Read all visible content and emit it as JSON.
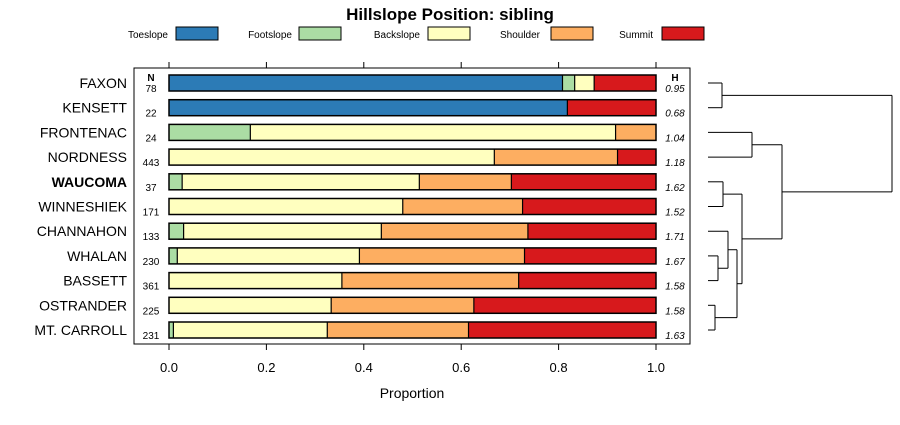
{
  "chart_data": {
    "type": "bar",
    "orientation": "horizontal-stacked",
    "title": "Hillslope Position: sibling",
    "xlabel": "Proportion",
    "ylabel": "",
    "xlim": [
      0,
      1
    ],
    "xticks": [
      "0.0",
      "0.2",
      "0.4",
      "0.6",
      "0.8",
      "1.0"
    ],
    "n_header": "N",
    "h_header": "H",
    "highlight": "WAUCOMA",
    "series": [
      {
        "name": "Toeslope",
        "color": "#2c7bb6"
      },
      {
        "name": "Footslope",
        "color": "#abdda4"
      },
      {
        "name": "Backslope",
        "color": "#ffffbf"
      },
      {
        "name": "Shoulder",
        "color": "#fdae61"
      },
      {
        "name": "Summit",
        "color": "#d7191c"
      }
    ],
    "rows": [
      {
        "label": "FAXON",
        "n": "78",
        "h": "0.95",
        "values": [
          0.808,
          0.025,
          0.04,
          0.0,
          0.127
        ]
      },
      {
        "label": "KENSETT",
        "n": "22",
        "h": "0.68",
        "values": [
          0.818,
          0.0,
          0.0,
          0.0,
          0.182
        ]
      },
      {
        "label": "FRONTENAC",
        "n": "24",
        "h": "1.04",
        "values": [
          0.0,
          0.167,
          0.75,
          0.083,
          0.0
        ]
      },
      {
        "label": "NORDNESS",
        "n": "443",
        "h": "1.18",
        "values": [
          0.0,
          0.0,
          0.668,
          0.253,
          0.079
        ]
      },
      {
        "label": "WAUCOMA",
        "n": "37",
        "h": "1.62",
        "values": [
          0.0,
          0.027,
          0.487,
          0.189,
          0.297
        ]
      },
      {
        "label": "WINNESHIEK",
        "n": "171",
        "h": "1.52",
        "values": [
          0.0,
          0.0,
          0.48,
          0.246,
          0.274
        ]
      },
      {
        "label": "CHANNAHON",
        "n": "133",
        "h": "1.71",
        "values": [
          0.0,
          0.03,
          0.406,
          0.301,
          0.263
        ]
      },
      {
        "label": "WHALAN",
        "n": "230",
        "h": "1.67",
        "values": [
          0.0,
          0.017,
          0.374,
          0.339,
          0.27
        ]
      },
      {
        "label": "BASSETT",
        "n": "361",
        "h": "1.58",
        "values": [
          0.0,
          0.0,
          0.355,
          0.363,
          0.282
        ]
      },
      {
        "label": "OSTRANDER",
        "n": "225",
        "h": "1.58",
        "values": [
          0.0,
          0.0,
          0.333,
          0.293,
          0.374
        ]
      },
      {
        "label": "MT. CARROLL",
        "n": "231",
        "h": "1.63",
        "values": [
          0.0,
          0.009,
          0.316,
          0.29,
          0.385
        ]
      }
    ]
  }
}
